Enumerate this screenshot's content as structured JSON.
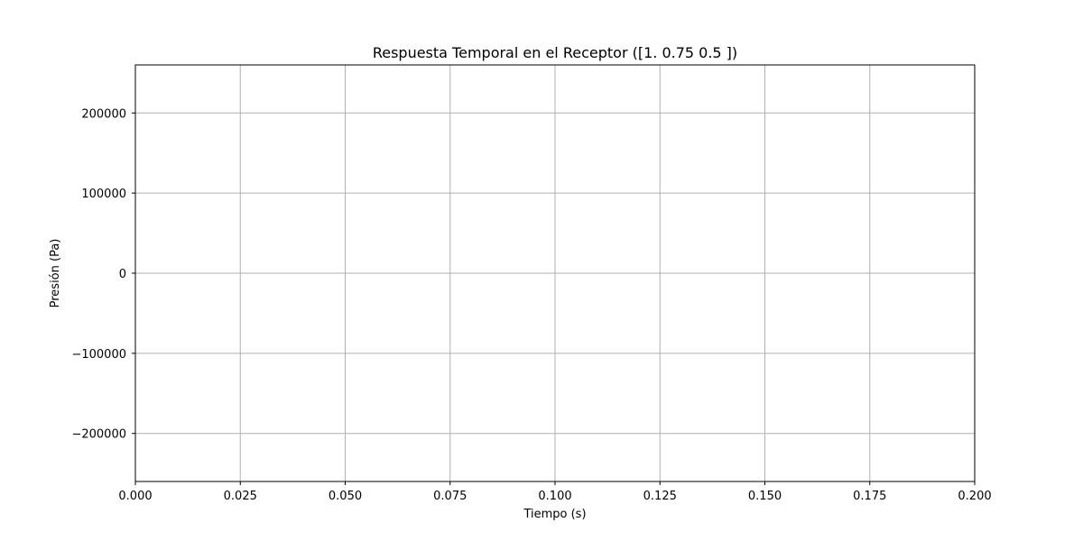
{
  "chart_data": {
    "type": "line",
    "title": "Respuesta Temporal en el Receptor ([1.   0.75 0.5 ])",
    "xlabel": "Tiempo (s)",
    "ylabel": "Presión (Pa)",
    "xlim": [
      0.0,
      0.2
    ],
    "ylim": [
      -260000,
      260000
    ],
    "xticks": [
      0.0,
      0.025,
      0.05,
      0.075,
      0.1,
      0.125,
      0.15,
      0.175,
      0.2
    ],
    "xtick_labels": [
      "0.000",
      "0.025",
      "0.050",
      "0.075",
      "0.100",
      "0.125",
      "0.150",
      "0.175",
      "0.200"
    ],
    "yticks": [
      -200000,
      -100000,
      0,
      100000,
      200000
    ],
    "ytick_labels": [
      "−200000",
      "−100000",
      "0",
      "100000",
      "200000"
    ],
    "grid": true,
    "series": []
  }
}
